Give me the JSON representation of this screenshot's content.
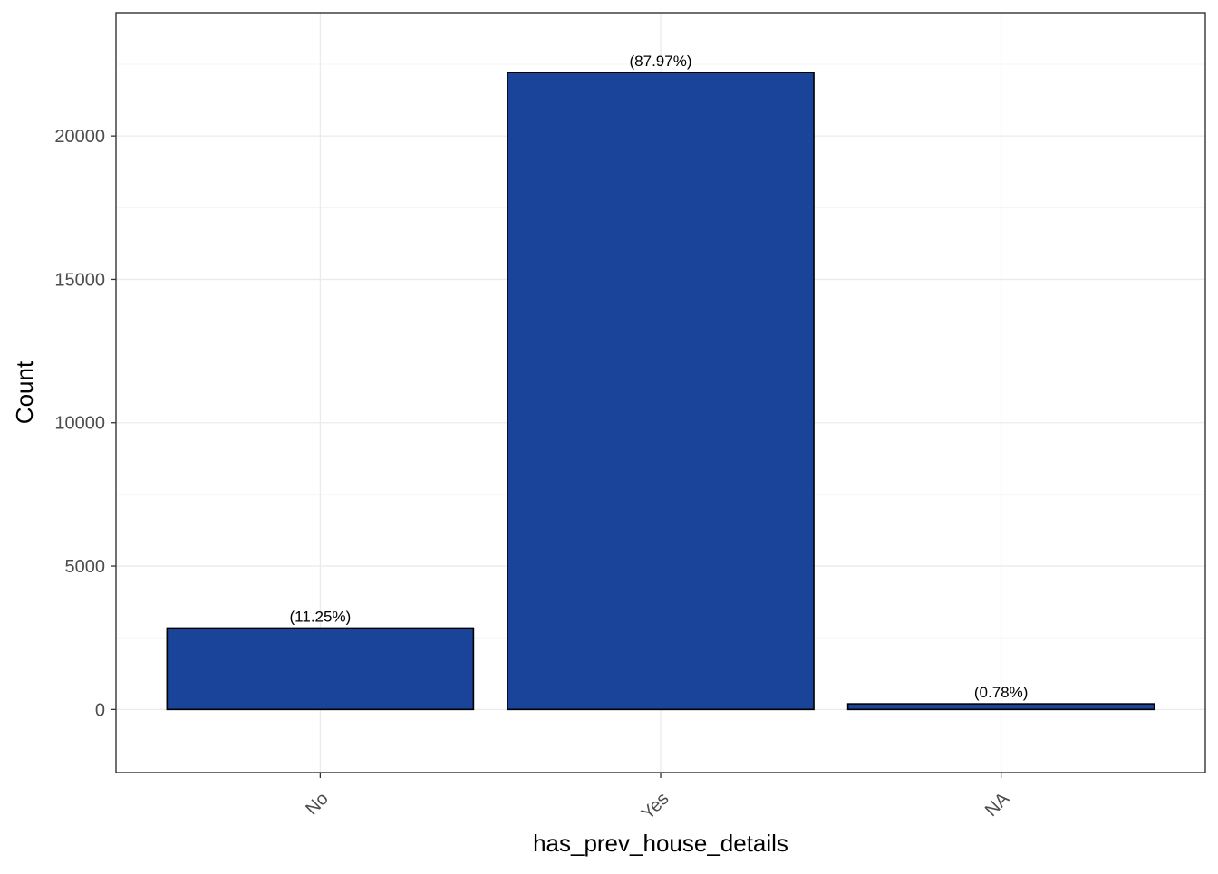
{
  "chart_data": {
    "type": "bar",
    "title": "",
    "xlabel": "has_prev_house_details",
    "ylabel": "Count",
    "categories": [
      "No",
      "Yes",
      "NA"
    ],
    "values": [
      2840,
      22210,
      197
    ],
    "data_labels": [
      "(11.25%)",
      "(87.97%)",
      "(0.78%)"
    ],
    "ylim": [
      -2200,
      24300
    ],
    "yticks": [
      0,
      5000,
      10000,
      15000,
      20000
    ],
    "ytick_labels": [
      "0",
      "5000",
      "10000",
      "15000",
      "20000"
    ],
    "grid": true,
    "legend": "none",
    "colors": {
      "bar_fill": "#19449a",
      "bar_outline": "#000000",
      "grid": "#ebebeb",
      "panel_border": "#333333"
    }
  }
}
